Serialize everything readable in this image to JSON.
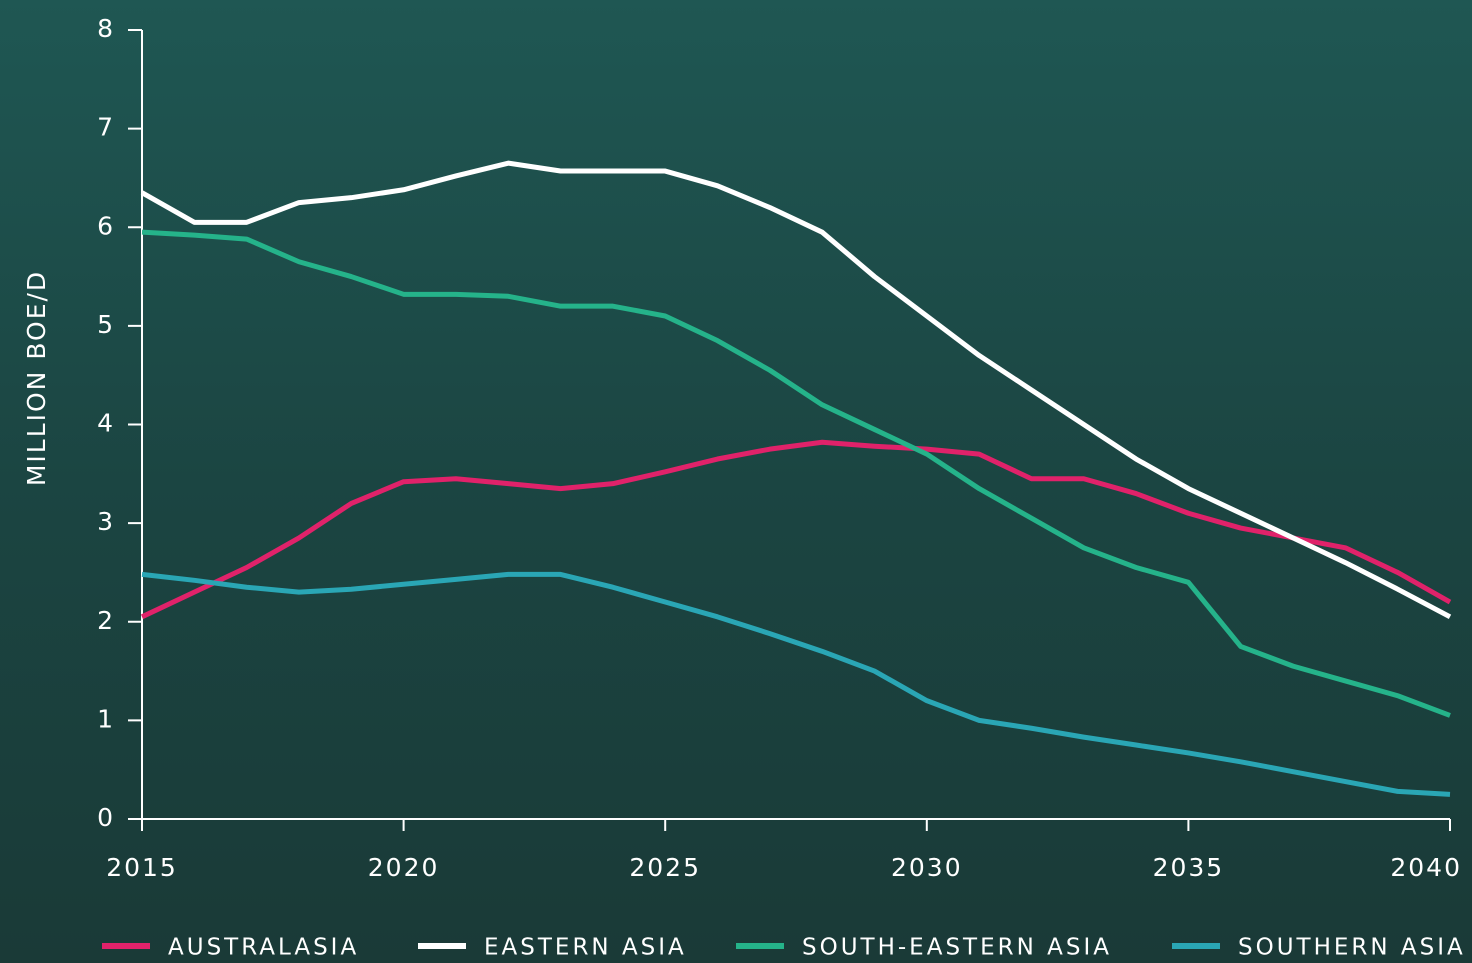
{
  "chart_data": {
    "type": "line",
    "y_label": "MILLION BOE/D",
    "x": [
      2015,
      2016,
      2017,
      2018,
      2019,
      2020,
      2021,
      2022,
      2023,
      2024,
      2025,
      2026,
      2027,
      2028,
      2029,
      2030,
      2031,
      2032,
      2033,
      2034,
      2035,
      2036,
      2037,
      2038,
      2039,
      2040
    ],
    "series": [
      {
        "name": "AUSTRALASIA",
        "color": "#e0226a",
        "values": [
          2.05,
          2.3,
          2.55,
          2.85,
          3.2,
          3.42,
          3.45,
          3.4,
          3.35,
          3.4,
          3.52,
          3.65,
          3.75,
          3.82,
          3.78,
          3.75,
          3.7,
          3.45,
          3.45,
          3.3,
          3.1,
          2.95,
          2.85,
          2.75,
          2.5,
          2.2
        ]
      },
      {
        "name": "EASTERN ASIA",
        "color": "#ffffff",
        "values": [
          6.35,
          6.05,
          6.05,
          6.25,
          6.3,
          6.38,
          6.52,
          6.65,
          6.57,
          6.57,
          6.57,
          6.42,
          6.2,
          5.95,
          5.5,
          5.1,
          4.7,
          4.35,
          4.0,
          3.65,
          3.35,
          3.1,
          2.85,
          2.6,
          2.33,
          2.05
        ]
      },
      {
        "name": "SOUTH-EASTERN ASIA",
        "color": "#25b38a",
        "values": [
          5.95,
          5.92,
          5.88,
          5.65,
          5.5,
          5.32,
          5.32,
          5.3,
          5.2,
          5.2,
          5.1,
          4.85,
          4.55,
          4.2,
          3.95,
          3.7,
          3.35,
          3.05,
          2.75,
          2.55,
          2.4,
          1.75,
          1.55,
          1.4,
          1.25,
          1.05
        ]
      },
      {
        "name": "SOUTHERN ASIA",
        "color": "#2aa6b5",
        "values": [
          2.48,
          2.42,
          2.35,
          2.3,
          2.33,
          2.38,
          2.43,
          2.48,
          2.48,
          2.35,
          2.2,
          2.05,
          1.88,
          1.7,
          1.5,
          1.2,
          1.0,
          0.92,
          0.83,
          0.75,
          0.67,
          0.58,
          0.48,
          0.38,
          0.28,
          0.25
        ]
      }
    ],
    "xlim": [
      2015,
      2040
    ],
    "xticks": [
      2015,
      2020,
      2025,
      2030,
      2035,
      2040
    ],
    "ylim": [
      0,
      8
    ],
    "yticks": [
      0,
      1,
      2,
      3,
      4,
      5,
      6,
      7,
      8
    ]
  }
}
